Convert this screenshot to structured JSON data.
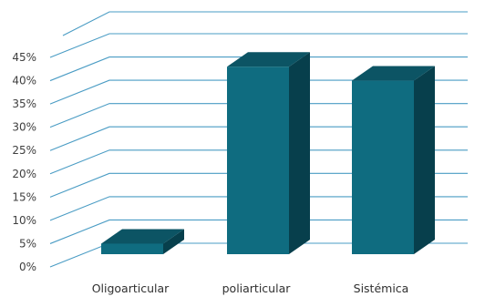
{
  "chart_data": {
    "type": "bar",
    "style": "3d-column",
    "categories": [
      "Oligoarticular",
      "poliarticular",
      "Sistémica"
    ],
    "values": [
      0.05,
      0.43,
      0.4
    ],
    "ylim": [
      0,
      0.45
    ],
    "yticks": [
      "0%",
      "5%",
      "10%",
      "15%",
      "20%",
      "25%",
      "30%",
      "35%",
      "40%",
      "45%"
    ],
    "grid": true,
    "legend": "none",
    "colors": {
      "bar_front": "#0f6c80",
      "bar_top": "#0c5464",
      "bar_side": "#073f4c",
      "grid": "#4a9cc4"
    }
  }
}
